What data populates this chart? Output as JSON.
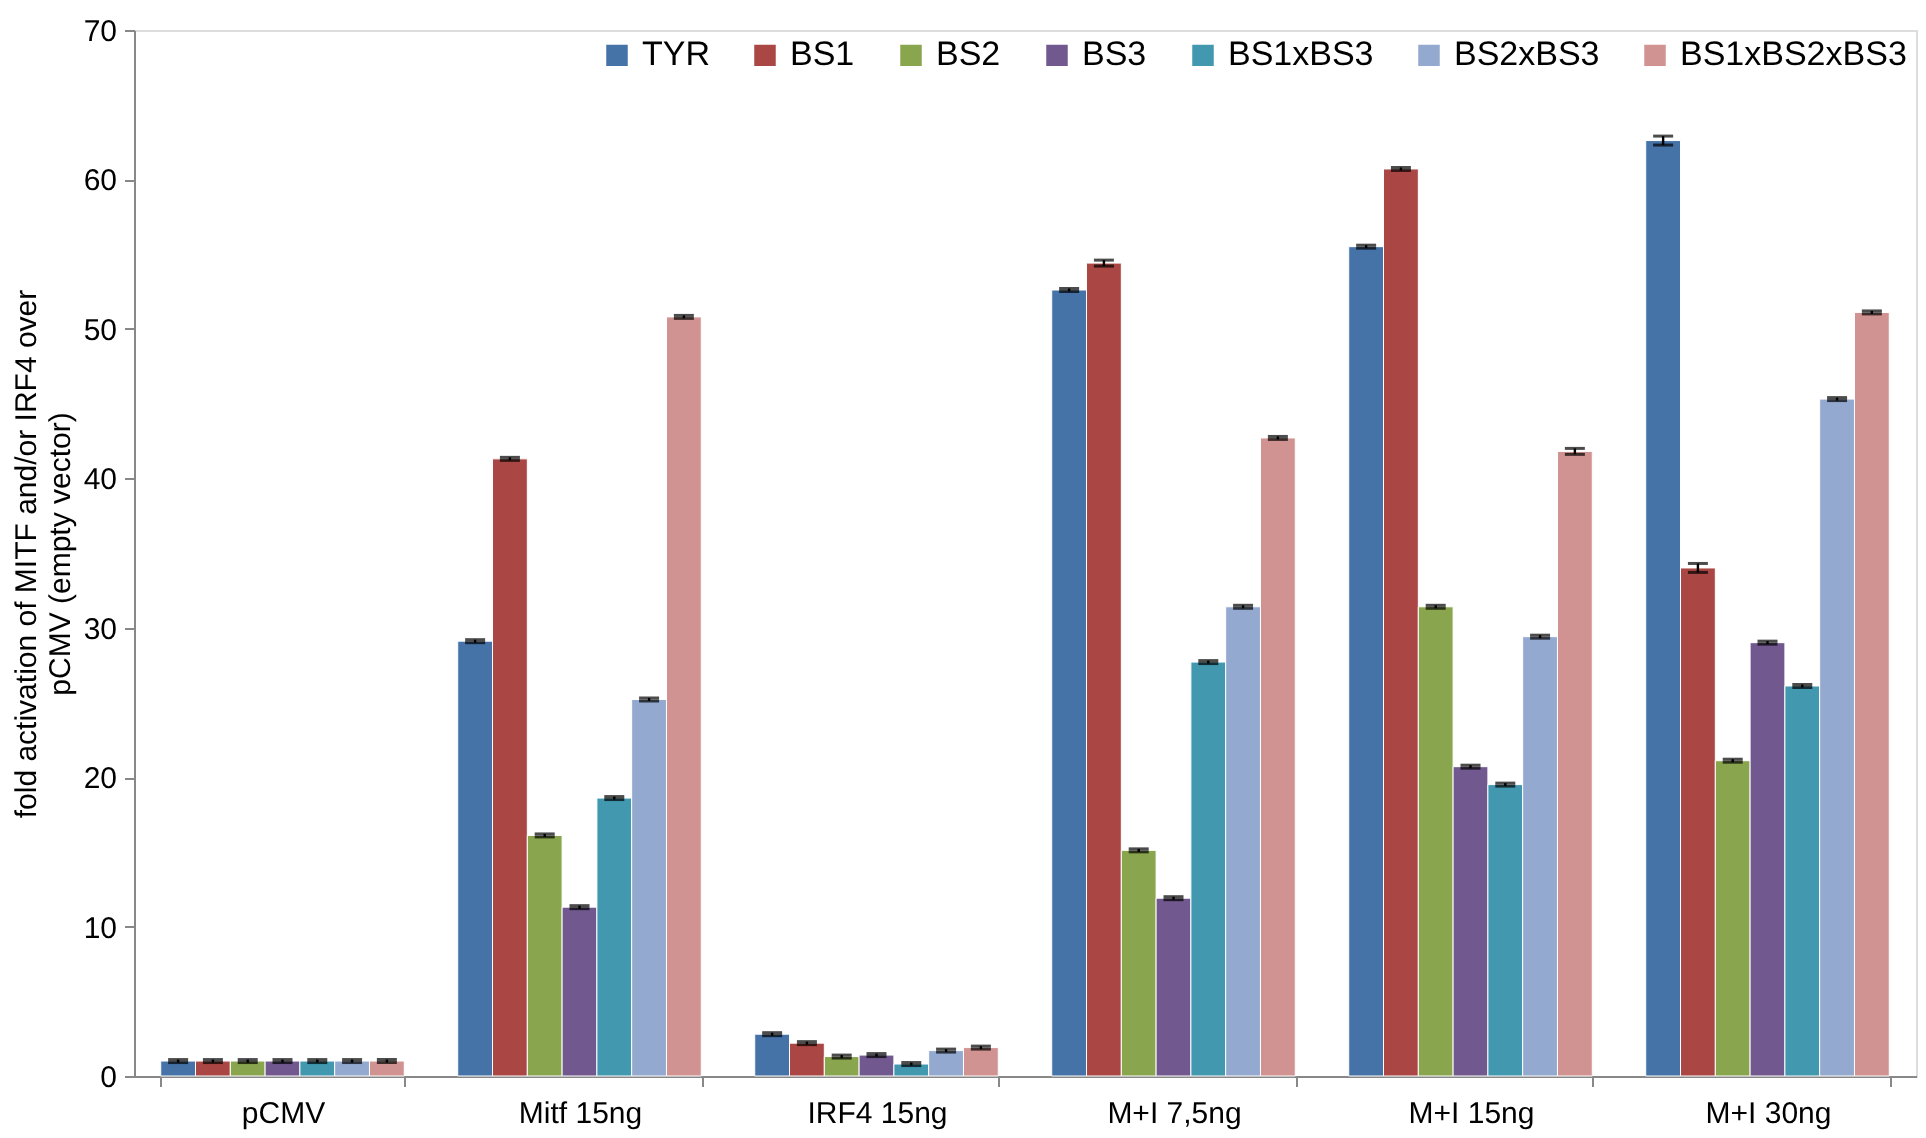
{
  "chart_data": {
    "type": "bar",
    "ylabel": [
      "fold activation of MITF and/or IRF4 over",
      "pCMV (empty vector)"
    ],
    "categories": [
      "pCMV",
      "Mitf 15ng",
      "IRF4 15ng",
      "M+I 7,5ng",
      "M+I 15ng",
      "M+I 30ng"
    ],
    "series": [
      {
        "name": "TYR",
        "color": "#4572a7",
        "values": [
          1.0,
          29.1,
          2.8,
          52.6,
          55.5,
          62.6
        ],
        "errors": [
          0.1,
          0.1,
          0.1,
          0.1,
          0.1,
          0.3
        ]
      },
      {
        "name": "BS1",
        "color": "#aa4643",
        "values": [
          1.0,
          41.3,
          2.2,
          54.4,
          60.7,
          34.0
        ],
        "errors": [
          0.1,
          0.1,
          0.1,
          0.2,
          0.1,
          0.3
        ]
      },
      {
        "name": "BS2",
        "color": "#89a54e",
        "values": [
          1.0,
          16.1,
          1.3,
          15.1,
          31.4,
          21.1
        ],
        "errors": [
          0.1,
          0.1,
          0.1,
          0.1,
          0.1,
          0.1
        ]
      },
      {
        "name": "BS3",
        "color": "#71588f",
        "values": [
          1.0,
          11.3,
          1.4,
          11.9,
          20.7,
          29.0
        ],
        "errors": [
          0.1,
          0.1,
          0.1,
          0.1,
          0.1,
          0.1
        ]
      },
      {
        "name": "BS1xBS3",
        "color": "#4198af",
        "values": [
          1.0,
          18.6,
          0.8,
          27.7,
          19.5,
          26.1
        ],
        "errors": [
          0.1,
          0.1,
          0.1,
          0.1,
          0.1,
          0.1
        ]
      },
      {
        "name": "BS2xBS3",
        "color": "#93a9d0",
        "values": [
          1.0,
          25.2,
          1.7,
          31.4,
          29.4,
          45.3
        ],
        "errors": [
          0.1,
          0.1,
          0.1,
          0.1,
          0.1,
          0.1
        ]
      },
      {
        "name": "BS1xBS2xBS3",
        "color": "#d09392",
        "values": [
          1.0,
          50.8,
          1.9,
          42.7,
          41.8,
          51.1
        ],
        "errors": [
          0.1,
          0.1,
          0.1,
          0.1,
          0.2,
          0.1
        ]
      }
    ],
    "ylim": [
      0,
      70
    ],
    "yticks": [
      0,
      10,
      20,
      30,
      40,
      50,
      60,
      70
    ],
    "grid": false,
    "legend": "top right"
  }
}
